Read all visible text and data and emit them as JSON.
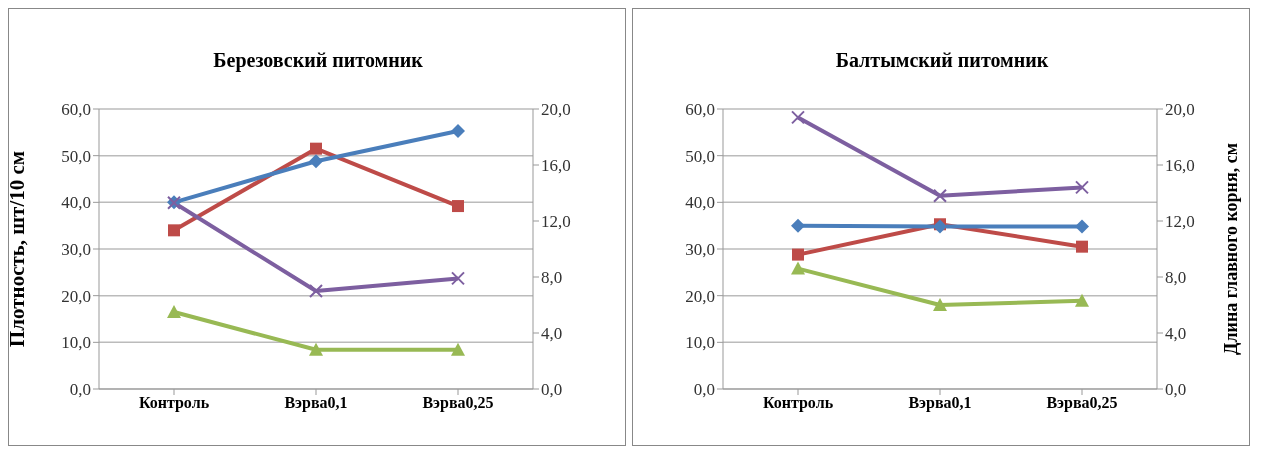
{
  "chart_data": [
    {
      "type": "line",
      "title": "Березовский питомник",
      "ylabel": "Плотность, шт/10 см",
      "categories": [
        "Контроль",
        "Вэрва0,1",
        "Вэрва0,25"
      ],
      "series": [
        {
          "color": "#be4b48",
          "values": [
            34.0,
            51.5,
            39.2
          ],
          "marker": "square"
        },
        {
          "color": "#4a7ebb",
          "values": [
            40.0,
            48.8,
            55.3
          ],
          "marker": "diamond"
        },
        {
          "color": "#7d5fa0",
          "values": [
            13.3,
            7.0,
            7.9
          ],
          "marker": "cross",
          "axis": "y2"
        },
        {
          "color": "#98b954",
          "values": [
            5.5,
            2.8,
            2.8
          ],
          "marker": "triangle",
          "axis": "y2"
        }
      ],
      "ylim": [
        0,
        60
      ],
      "yticks": [
        {
          "value": 0,
          "label": "0,0"
        },
        {
          "value": 10,
          "label": "10,0"
        },
        {
          "value": 20,
          "label": "20,0"
        },
        {
          "value": 30,
          "label": "30,0"
        },
        {
          "value": 40,
          "label": "40,0"
        },
        {
          "value": 50,
          "label": "50,0"
        },
        {
          "value": 60,
          "label": "60,0"
        }
      ],
      "y2lim": [
        0,
        20
      ],
      "y2ticks": [
        {
          "value": 0,
          "label": "0,0"
        },
        {
          "value": 4,
          "label": "4,0"
        },
        {
          "value": 8,
          "label": "8,0"
        },
        {
          "value": 12,
          "label": "12,0"
        },
        {
          "value": 16,
          "label": "16,0"
        },
        {
          "value": 20,
          "label": "20,0"
        }
      ],
      "grid": "y",
      "legend": false
    },
    {
      "type": "line",
      "title": "Балтымский питомник",
      "y2label": "Длина главного корня, см",
      "categories": [
        "Контроль",
        "Вэрва0,1",
        "Вэрва0,25"
      ],
      "series": [
        {
          "color": "#be4b48",
          "values": [
            28.8,
            35.3,
            30.5
          ],
          "marker": "square"
        },
        {
          "color": "#4a7ebb",
          "values": [
            35.0,
            34.8,
            34.8
          ],
          "marker": "diamond"
        },
        {
          "color": "#7d5fa0",
          "values": [
            19.4,
            13.8,
            14.4
          ],
          "marker": "cross",
          "axis": "y2"
        },
        {
          "color": "#98b954",
          "values": [
            8.6,
            6.0,
            6.3
          ],
          "marker": "triangle",
          "axis": "y2"
        }
      ],
      "ylim": [
        0,
        60
      ],
      "yticks": [
        {
          "value": 0,
          "label": "0,0"
        },
        {
          "value": 10,
          "label": "10,0"
        },
        {
          "value": 20,
          "label": "20,0"
        },
        {
          "value": 30,
          "label": "30,0"
        },
        {
          "value": 40,
          "label": "40,0"
        },
        {
          "value": 50,
          "label": "50,0"
        },
        {
          "value": 60,
          "label": "60,0"
        }
      ],
      "y2lim": [
        0,
        20
      ],
      "y2ticks": [
        {
          "value": 0,
          "label": "0,0"
        },
        {
          "value": 4,
          "label": "4,0"
        },
        {
          "value": 8,
          "label": "8,0"
        },
        {
          "value": 12,
          "label": "12,0"
        },
        {
          "value": 16,
          "label": "16,0"
        },
        {
          "value": 20,
          "label": "20,0"
        }
      ],
      "grid": "y",
      "legend": false
    }
  ]
}
